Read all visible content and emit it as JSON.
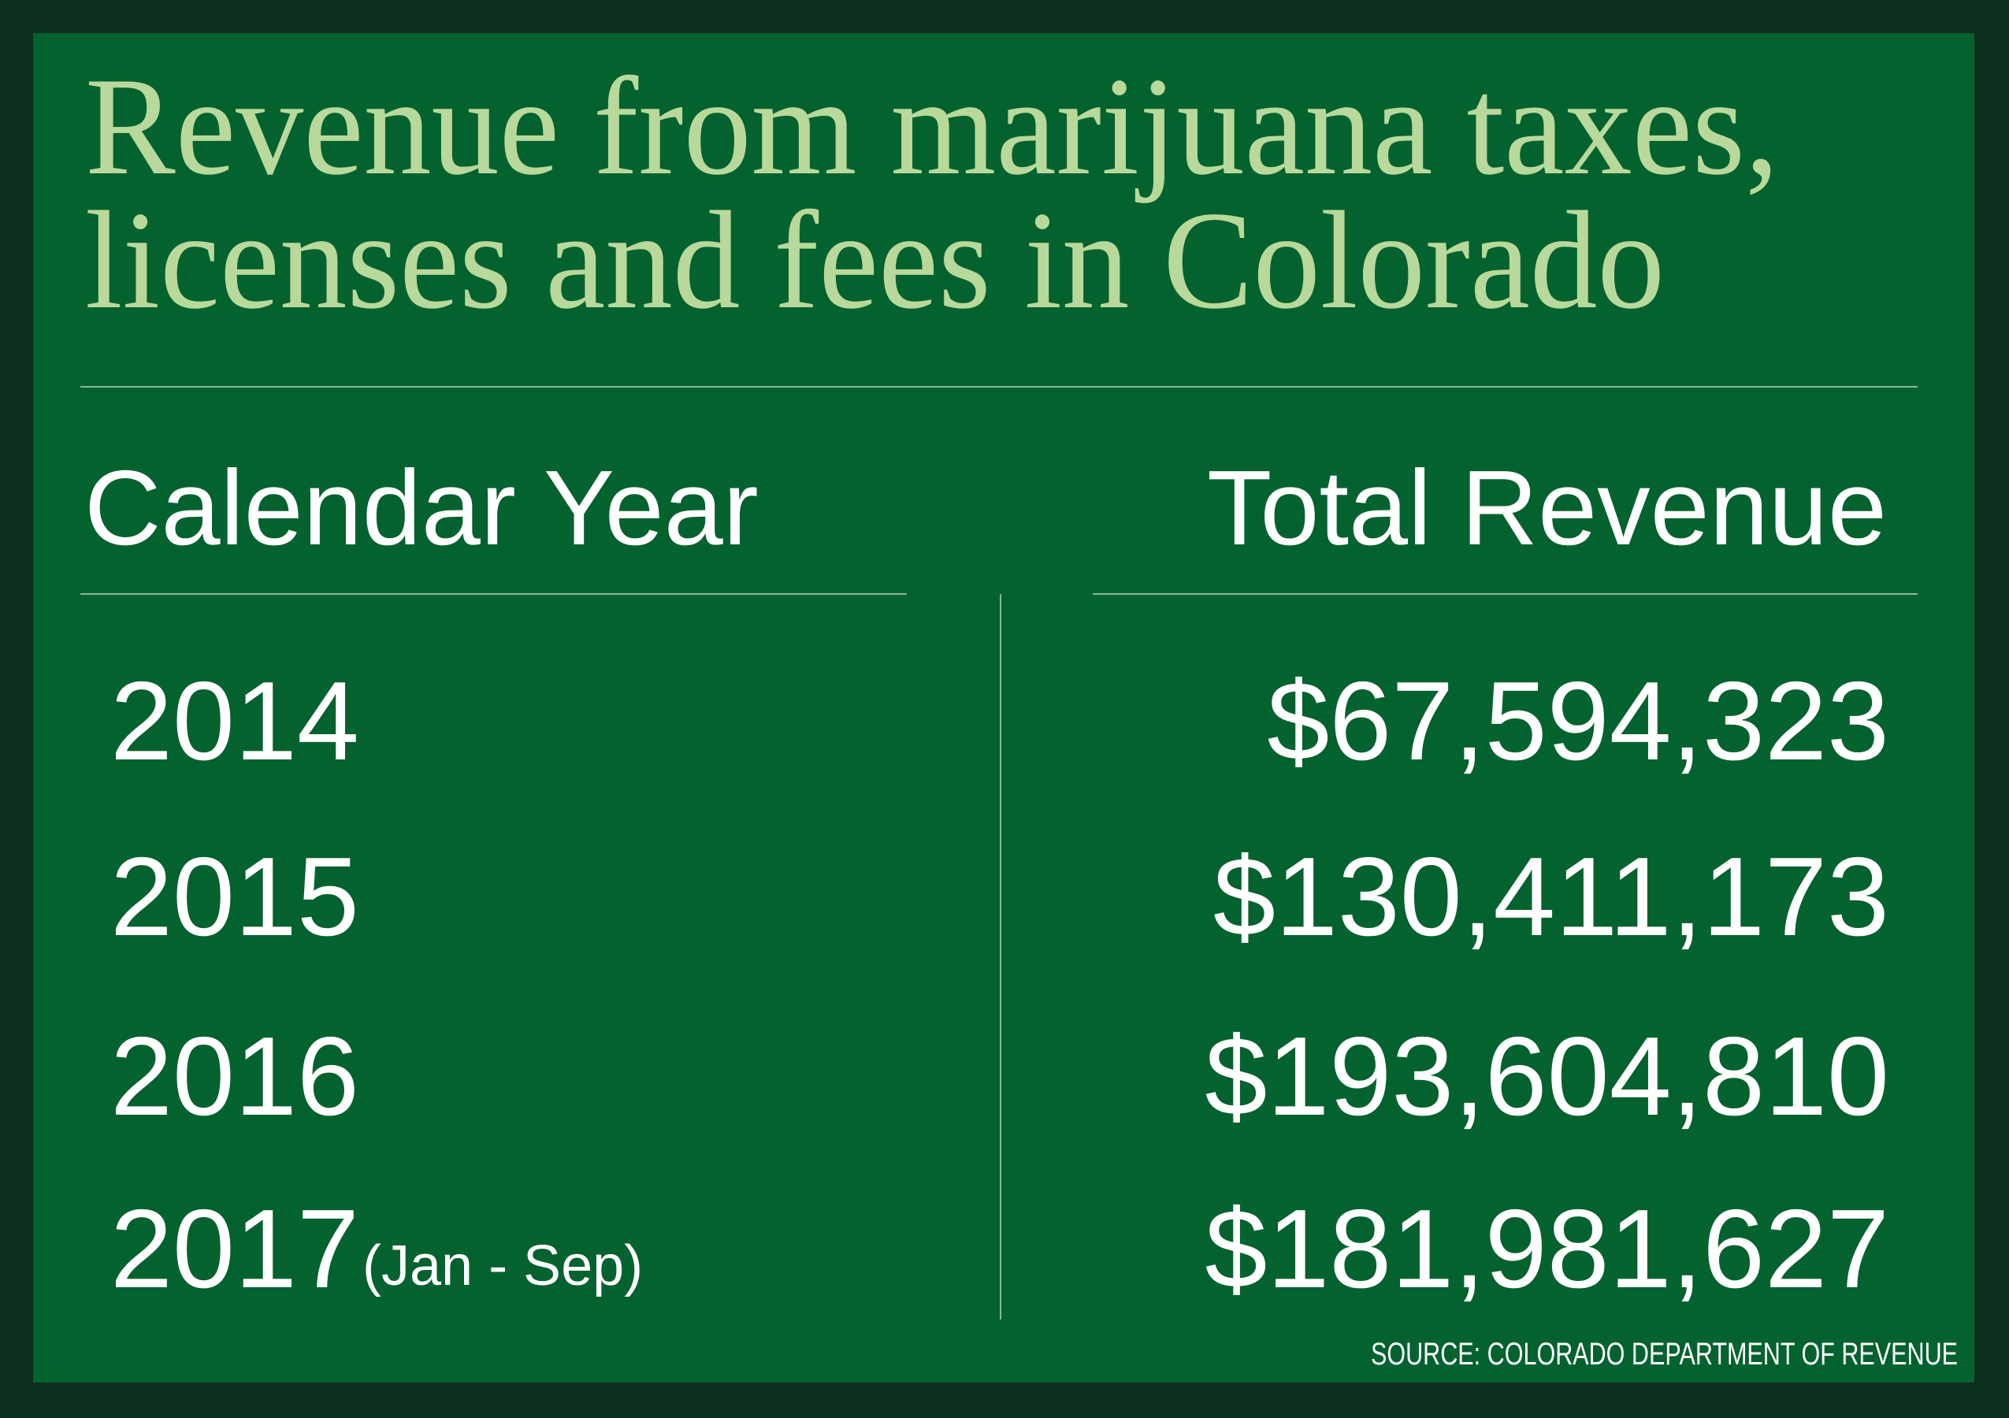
{
  "title": [
    "Revenue from marijuana taxes,",
    "licenses and fees in Colorado"
  ],
  "table": {
    "headers": [
      "Calendar Year",
      "Total Revenue"
    ],
    "rows": [
      {
        "year": "2014",
        "revenue": "$67,594,323"
      },
      {
        "year": "2015",
        "revenue": "$130,411,173"
      },
      {
        "year": "2016",
        "revenue": "$193,604,810"
      },
      {
        "year": "2017",
        "note": "(Jan - Sep)",
        "revenue": "$181,981,627"
      }
    ]
  },
  "source": "SOURCE: COLORADO DEPARTMENT OF REVENUE"
}
